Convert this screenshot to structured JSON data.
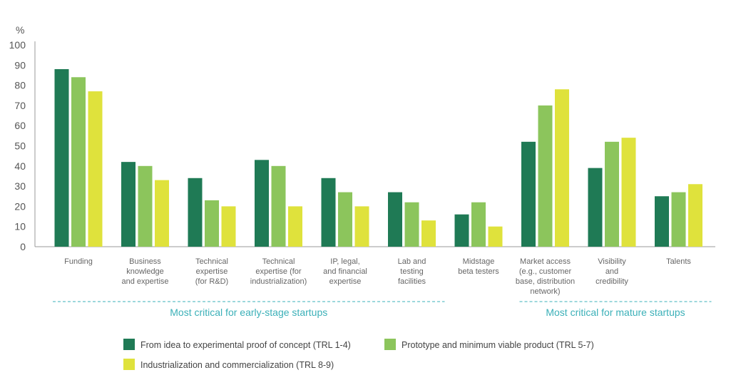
{
  "chart_data": {
    "type": "bar",
    "ylabel": "%",
    "ylim": [
      0,
      100
    ],
    "yticks": [
      0,
      10,
      20,
      30,
      40,
      50,
      60,
      70,
      80,
      90,
      100
    ],
    "grid": false,
    "categories": [
      [
        "Funding"
      ],
      [
        "Business",
        "knowledge",
        "and expertise"
      ],
      [
        "Technical",
        "expertise",
        "(for R&D)"
      ],
      [
        "Technical",
        "expertise (for",
        "industrialization)"
      ],
      [
        "IP, legal,",
        "and financial",
        "expertise"
      ],
      [
        "Lab and",
        "testing",
        "facilities"
      ],
      [
        "Midstage",
        "beta testers"
      ],
      [
        "Market access",
        "(e.g., customer",
        "base, distribution",
        "network)"
      ],
      [
        "Visibility",
        "and",
        "credibility"
      ],
      [
        "Talents"
      ]
    ],
    "series": [
      {
        "name": "From idea to experimental proof of concept (TRL 1-4)",
        "color": "#1f7a55",
        "values": [
          88,
          42,
          34,
          43,
          34,
          27,
          16,
          52,
          39,
          25
        ]
      },
      {
        "name": "Prototype and minimum viable product (TRL 5-7)",
        "color": "#8cc55c",
        "values": [
          84,
          40,
          23,
          40,
          27,
          22,
          22,
          70,
          52,
          27
        ]
      },
      {
        "name": "Industrialization and commercialization (TRL 8-9)",
        "color": "#dfe23c",
        "values": [
          77,
          33,
          20,
          20,
          20,
          13,
          10,
          78,
          54,
          31
        ]
      }
    ],
    "groups": [
      {
        "label": "Most critical for early-stage startups",
        "from": 0,
        "to": 5
      },
      {
        "label": "Most critical for mature startups",
        "from": 7,
        "to": 9
      }
    ],
    "group_color": "#3bb0b8",
    "legend_position": "bottom"
  }
}
